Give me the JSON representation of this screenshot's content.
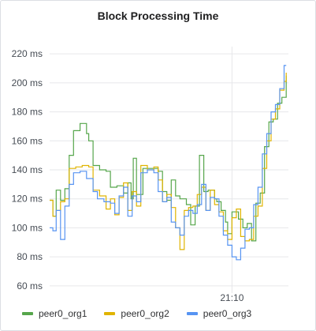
{
  "panel": {
    "title": "Block Processing Time"
  },
  "chart_data": {
    "type": "line",
    "title": "Block Processing Time",
    "xlabel": "",
    "ylabel": "",
    "unit": "ms",
    "ylim": [
      55,
      225
    ],
    "yticks": [
      60,
      80,
      100,
      120,
      140,
      160,
      180,
      200,
      220
    ],
    "ytick_labels": [
      "60 ms",
      "80 ms",
      "100 ms",
      "120 ms",
      "140 ms",
      "160 ms",
      "180 ms",
      "200 ms",
      "220 ms"
    ],
    "x_range_minutes": [
      0,
      22
    ],
    "xticks": [
      {
        "t": 16.8,
        "label": "21:10"
      }
    ],
    "grid": true,
    "legend_position": "bottom-left",
    "series": [
      {
        "name": "peer0_org1",
        "color": "#56a64b",
        "points": [
          [
            0,
            119
          ],
          [
            0.3,
            108
          ],
          [
            0.6,
            126
          ],
          [
            1.0,
            119
          ],
          [
            1.4,
            127
          ],
          [
            1.8,
            150
          ],
          [
            2.2,
            167
          ],
          [
            2.8,
            172
          ],
          [
            3.4,
            165
          ],
          [
            3.6,
            160
          ],
          [
            4.0,
            143
          ],
          [
            4.6,
            140
          ],
          [
            5.2,
            139
          ],
          [
            5.6,
            128
          ],
          [
            6.2,
            129
          ],
          [
            6.8,
            124
          ],
          [
            7.2,
            131
          ],
          [
            7.5,
            120
          ],
          [
            7.7,
            148
          ],
          [
            8.0,
            123
          ],
          [
            8.6,
            141
          ],
          [
            9.4,
            141
          ],
          [
            10.0,
            139
          ],
          [
            10.4,
            125
          ],
          [
            10.8,
            119
          ],
          [
            11.2,
            133
          ],
          [
            11.6,
            122
          ],
          [
            12.0,
            120
          ],
          [
            12.6,
            116
          ],
          [
            13.0,
            102
          ],
          [
            13.4,
            115
          ],
          [
            13.8,
            150
          ],
          [
            14.2,
            125
          ],
          [
            14.6,
            126
          ],
          [
            15.2,
            120
          ],
          [
            15.4,
            118
          ],
          [
            15.8,
            112
          ],
          [
            16.2,
            104
          ],
          [
            16.4,
            96
          ],
          [
            16.8,
            111
          ],
          [
            17.4,
            106
          ],
          [
            17.8,
            100
          ],
          [
            18.2,
            103
          ],
          [
            18.6,
            91
          ],
          [
            19.0,
            117
          ],
          [
            19.4,
            124
          ],
          [
            19.8,
            156
          ],
          [
            20.2,
            173
          ],
          [
            20.6,
            175
          ],
          [
            21.0,
            186
          ],
          [
            21.4,
            190
          ],
          [
            21.8,
            205
          ]
        ]
      },
      {
        "name": "peer0_org2",
        "color": "#e0b400",
        "points": [
          [
            0,
            119
          ],
          [
            0.3,
            108
          ],
          [
            0.6,
            112
          ],
          [
            1.0,
            118
          ],
          [
            1.4,
            120
          ],
          [
            1.8,
            141
          ],
          [
            2.4,
            142
          ],
          [
            3.0,
            143
          ],
          [
            3.6,
            142
          ],
          [
            4.0,
            126
          ],
          [
            4.6,
            122
          ],
          [
            5.2,
            113
          ],
          [
            5.6,
            120
          ],
          [
            6.0,
            109
          ],
          [
            6.4,
            121
          ],
          [
            6.8,
            131
          ],
          [
            7.2,
            112
          ],
          [
            7.6,
            125
          ],
          [
            8.0,
            115
          ],
          [
            8.4,
            143
          ],
          [
            9.0,
            140
          ],
          [
            9.6,
            142
          ],
          [
            10.0,
            133
          ],
          [
            10.4,
            118
          ],
          [
            10.8,
            123
          ],
          [
            11.2,
            114
          ],
          [
            11.6,
            100
          ],
          [
            12.0,
            85
          ],
          [
            12.4,
            112
          ],
          [
            12.8,
            114
          ],
          [
            13.2,
            115
          ],
          [
            13.6,
            123
          ],
          [
            14.0,
            128
          ],
          [
            14.4,
            112
          ],
          [
            14.8,
            126
          ],
          [
            15.2,
            116
          ],
          [
            15.6,
            111
          ],
          [
            16.0,
            98
          ],
          [
            16.4,
            92
          ],
          [
            16.8,
            107
          ],
          [
            17.2,
            113
          ],
          [
            17.6,
            94
          ],
          [
            18.0,
            91
          ],
          [
            18.4,
            92
          ],
          [
            18.8,
            108
          ],
          [
            19.2,
            115
          ],
          [
            19.6,
            141
          ],
          [
            20.0,
            160
          ],
          [
            20.4,
            175
          ],
          [
            20.8,
            182
          ],
          [
            21.2,
            195
          ],
          [
            21.6,
            201
          ],
          [
            21.8,
            207
          ]
        ]
      },
      {
        "name": "peer0_org3",
        "color": "#5794f2",
        "points": [
          [
            0,
            100
          ],
          [
            0.3,
            98
          ],
          [
            0.6,
            112
          ],
          [
            1.0,
            92
          ],
          [
            1.4,
            115
          ],
          [
            1.8,
            130
          ],
          [
            2.2,
            138
          ],
          [
            2.8,
            139
          ],
          [
            3.4,
            134
          ],
          [
            4.0,
            125
          ],
          [
            4.4,
            120
          ],
          [
            5.0,
            118
          ],
          [
            5.6,
            117
          ],
          [
            6.0,
            110
          ],
          [
            6.4,
            122
          ],
          [
            6.8,
            128
          ],
          [
            7.2,
            108
          ],
          [
            7.6,
            122
          ],
          [
            8.0,
            118
          ],
          [
            8.4,
            138
          ],
          [
            9.0,
            140
          ],
          [
            9.6,
            138
          ],
          [
            10.0,
            125
          ],
          [
            10.4,
            118
          ],
          [
            10.8,
            121
          ],
          [
            11.2,
            104
          ],
          [
            11.6,
            100
          ],
          [
            12.0,
            95
          ],
          [
            12.4,
            108
          ],
          [
            12.8,
            112
          ],
          [
            13.2,
            110
          ],
          [
            13.6,
            116
          ],
          [
            14.0,
            130
          ],
          [
            14.4,
            112
          ],
          [
            14.8,
            121
          ],
          [
            15.2,
            120
          ],
          [
            15.6,
            108
          ],
          [
            16.0,
            95
          ],
          [
            16.4,
            88
          ],
          [
            16.8,
            80
          ],
          [
            17.2,
            78
          ],
          [
            17.6,
            86
          ],
          [
            18.0,
            99
          ],
          [
            18.4,
            100
          ],
          [
            18.8,
            116
          ],
          [
            19.2,
            128
          ],
          [
            19.6,
            151
          ],
          [
            20.0,
            165
          ],
          [
            20.4,
            180
          ],
          [
            20.8,
            185
          ],
          [
            21.2,
            196
          ],
          [
            21.6,
            212
          ],
          [
            21.8,
            212
          ]
        ]
      }
    ]
  }
}
